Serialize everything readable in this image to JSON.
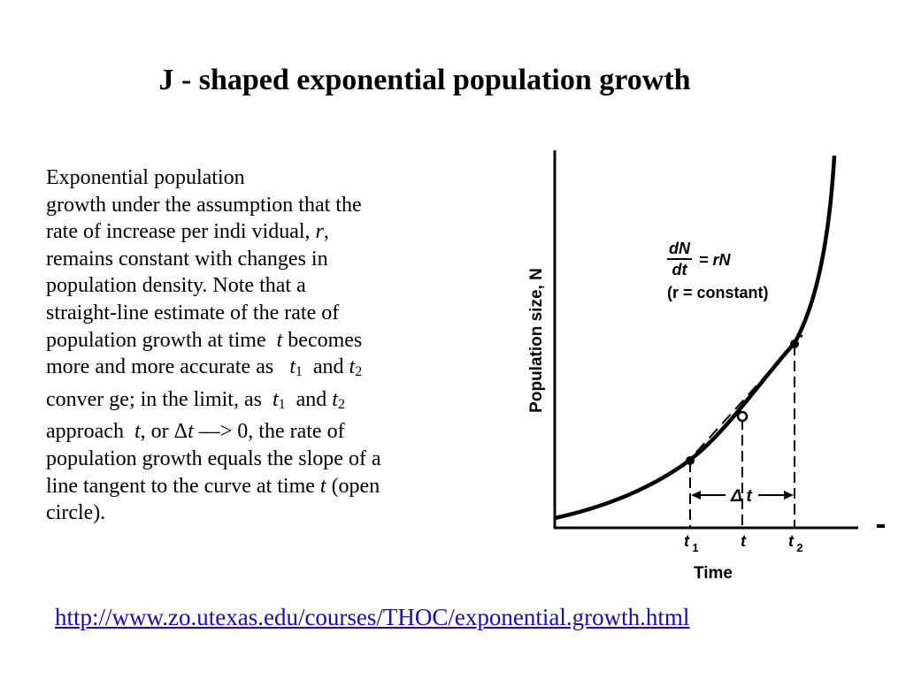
{
  "title": "J - shaped exponential population growth",
  "description": {
    "line1": "Exponential population",
    "line2": "growth under the assumption that the",
    "line3_a": "rate  of increase per indi vidual,",
    "line3_r": "r",
    "line3_c": ",",
    "line4": "remains constant with changes in",
    "line5": "population density.  Note that a",
    "line6": "straight-line estimate of the rate of",
    "line7_a": "population growth at time",
    "line7_t": "t",
    "line7_b": "becomes",
    "line8_a": "more and more accurate as",
    "t": "t",
    "sub1": "1",
    "sub2": "2",
    "and": "and",
    "line9_a": "conver ge; in the limit, as",
    "line10_a": "approach",
    "line10_b": ", or",
    "delta": "Δ",
    "arrow": "—>",
    "line10_c": "0, the rate of",
    "line11": "population growth equals the slope of a",
    "line12_a": "line tangent to the curve at time",
    "line12_b": "(open",
    "line13": "circle)."
  },
  "figure": {
    "y_axis_label": "Population size, N",
    "x_axis_label": "Time",
    "eq_numerator": "dN",
    "eq_denominator": "dt",
    "eq_rhs": "= rN",
    "eq_note": "(r = constant)",
    "tick_t1": "t",
    "tick_t1_sub": "1",
    "tick_t": "t",
    "tick_t2": "t",
    "tick_t2_sub": "2",
    "delta_t": "Δ t"
  },
  "link": "http://www.zo.utexas.edu/courses/THOC/exponential.growth.html"
}
